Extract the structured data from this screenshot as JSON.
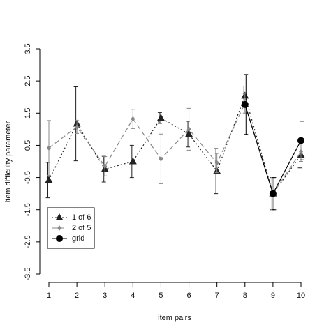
{
  "chart_data": {
    "type": "line",
    "x_label": "item pairs",
    "y_label": "item difficulty parameter",
    "x": [
      1,
      2,
      3,
      4,
      5,
      6,
      7,
      8,
      9,
      10
    ],
    "xlim": [
      1,
      10
    ],
    "xticks": [
      1,
      2,
      3,
      4,
      5,
      6,
      7,
      8,
      9,
      10
    ],
    "ylim": [
      -3.5,
      3.5
    ],
    "yticks": [
      -3.5,
      -2.5,
      -1.5,
      -0.5,
      0.5,
      1.5,
      2.5,
      3.5
    ],
    "legend": "bottom-left",
    "series": [
      {
        "name": "1 of 6",
        "color": "#222222",
        "marker": "triangle",
        "dash": "2,3",
        "values": [
          -0.58,
          1.17,
          -0.24,
          0.0,
          1.35,
          0.85,
          -0.3,
          2.04,
          -1.0,
          0.2
        ],
        "errors": [
          0.55,
          1.15,
          0.4,
          0.5,
          0.17,
          0.4,
          0.7,
          0.3,
          0.5,
          0.4
        ]
      },
      {
        "name": "2 of 5",
        "color": "#888888",
        "marker": "diamond",
        "dash": "7,4",
        "values": [
          0.42,
          1.07,
          -0.15,
          1.32,
          0.08,
          1.0,
          -0.05,
          1.8,
          -1.0,
          0.3
        ],
        "errors": [
          0.85,
          0.2,
          0.3,
          0.3,
          0.77,
          0.65,
          0.3,
          0.3,
          0.5,
          0.3
        ]
      },
      {
        "name": "grid",
        "color": "#000000",
        "marker": "circle",
        "dash": "none",
        "values": [
          null,
          null,
          null,
          null,
          null,
          null,
          null,
          1.77,
          -1.0,
          0.65
        ],
        "errors": [
          null,
          null,
          null,
          null,
          null,
          null,
          null,
          0.93,
          0.5,
          0.6
        ]
      }
    ]
  }
}
